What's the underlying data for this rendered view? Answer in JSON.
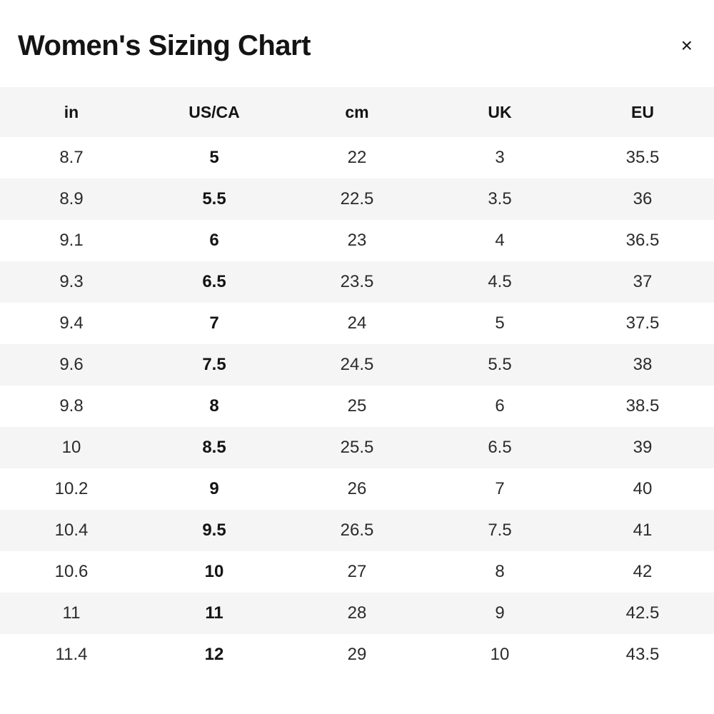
{
  "modal": {
    "title": "Women's Sizing Chart",
    "close_icon": "×"
  },
  "table": {
    "columns": [
      "in",
      "US/CA",
      "cm",
      "UK",
      "EU"
    ],
    "rows": [
      [
        "8.7",
        "5",
        "22",
        "3",
        "35.5"
      ],
      [
        "8.9",
        "5.5",
        "22.5",
        "3.5",
        "36"
      ],
      [
        "9.1",
        "6",
        "23",
        "4",
        "36.5"
      ],
      [
        "9.3",
        "6.5",
        "23.5",
        "4.5",
        "37"
      ],
      [
        "9.4",
        "7",
        "24",
        "5",
        "37.5"
      ],
      [
        "9.6",
        "7.5",
        "24.5",
        "5.5",
        "38"
      ],
      [
        "9.8",
        "8",
        "25",
        "6",
        "38.5"
      ],
      [
        "10",
        "8.5",
        "25.5",
        "6.5",
        "39"
      ],
      [
        "10.2",
        "9",
        "26",
        "7",
        "40"
      ],
      [
        "10.4",
        "9.5",
        "26.5",
        "7.5",
        "41"
      ],
      [
        "10.6",
        "10",
        "27",
        "8",
        "42"
      ],
      [
        "11",
        "11",
        "28",
        "9",
        "42.5"
      ],
      [
        "11.4",
        "12",
        "29",
        "10",
        "43.5"
      ]
    ]
  },
  "colors": {
    "row_alt_bg": "#f5f5f5",
    "header_bg": "#f5f5f5",
    "title_text": "#141414",
    "cell_text": "#2b2b2b"
  }
}
